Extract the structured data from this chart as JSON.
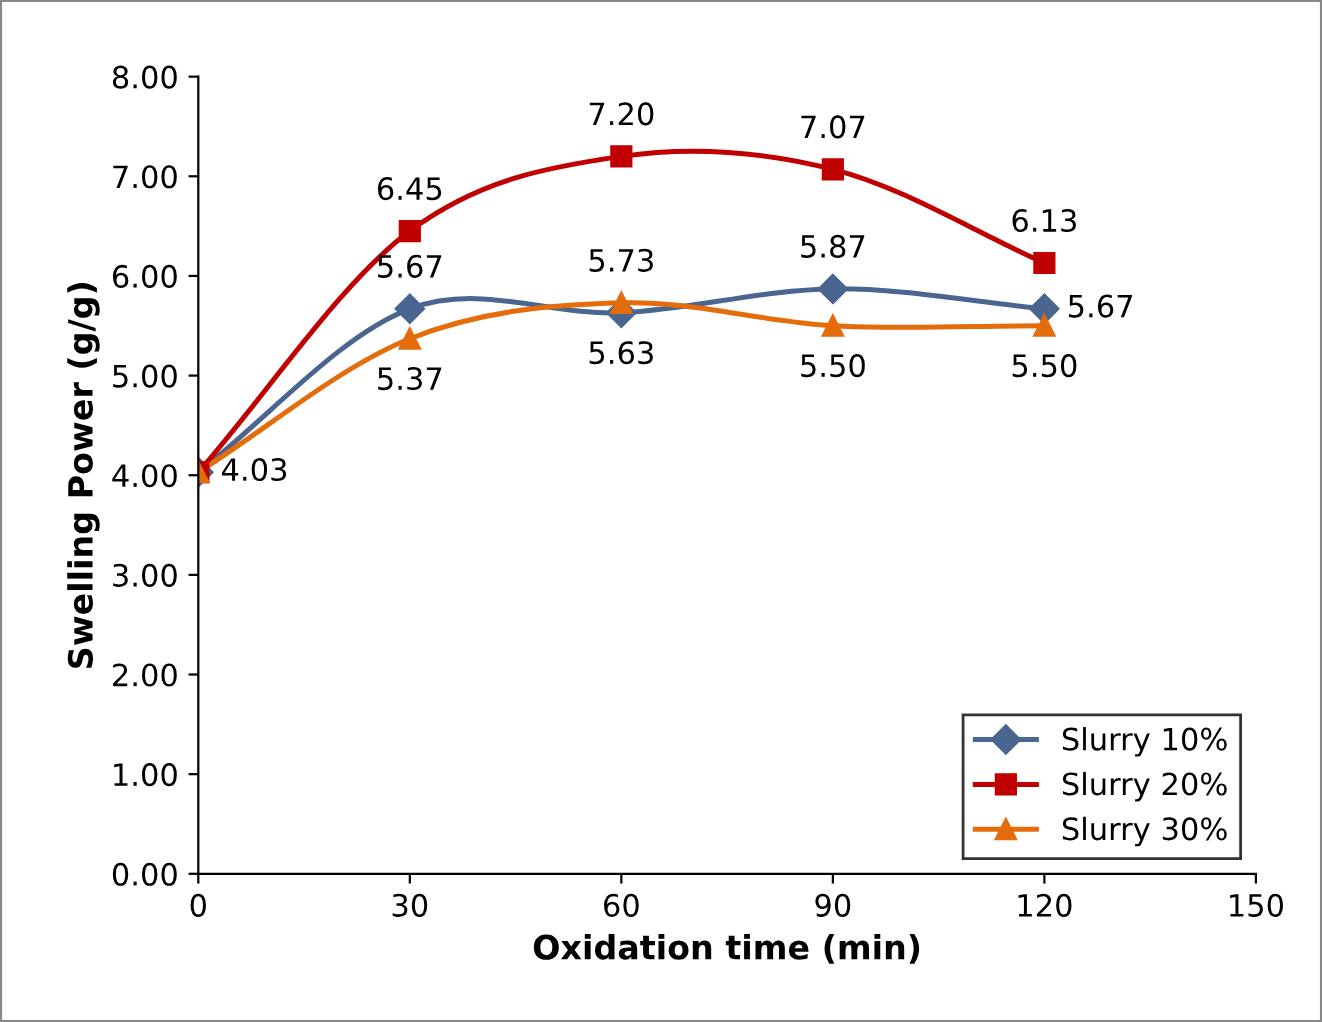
{
  "chart_data": {
    "type": "line",
    "xlabel": "Oxidation time (min)",
    "ylabel": "Swelling Power (g/g)",
    "x": [
      0,
      30,
      60,
      90,
      120
    ],
    "series": [
      {
        "name": "Slurry 10%",
        "color": "#4a6590",
        "marker": "diamond",
        "values": [
          4.03,
          5.67,
          5.63,
          5.87,
          5.67
        ],
        "value_labels": [
          "4.03",
          "5.67",
          "5.63",
          "5.87",
          "5.67"
        ]
      },
      {
        "name": "Slurry 20%",
        "color": "#c00000",
        "marker": "square",
        "values": [
          4.03,
          6.45,
          7.2,
          7.07,
          6.13
        ],
        "value_labels": [
          null,
          "6.45",
          "7.20",
          "7.07",
          "6.13"
        ]
      },
      {
        "name": "Slurry 30%",
        "color": "#e46c0a",
        "marker": "triangle",
        "values": [
          4.03,
          5.37,
          5.73,
          5.5,
          5.5
        ],
        "value_labels": [
          null,
          "5.37",
          "5.73",
          "5.50",
          "5.50"
        ]
      }
    ],
    "xlim": [
      0,
      150
    ],
    "xticks": [
      0,
      30,
      60,
      90,
      120,
      150
    ],
    "ylim": [
      0,
      8
    ],
    "yticks": [
      {
        "value": 0,
        "label": "0.00"
      },
      {
        "value": 1,
        "label": "1.00"
      },
      {
        "value": 2,
        "label": "2.00"
      },
      {
        "value": 3,
        "label": "3.00"
      },
      {
        "value": 4,
        "label": "4.00"
      },
      {
        "value": 5,
        "label": "5.00"
      },
      {
        "value": 6,
        "label": "6.00"
      },
      {
        "value": 7,
        "label": "7.00"
      },
      {
        "value": 8,
        "label": "8.00"
      }
    ],
    "grid": false,
    "legend": "bottom right",
    "line_style": "solid"
  }
}
